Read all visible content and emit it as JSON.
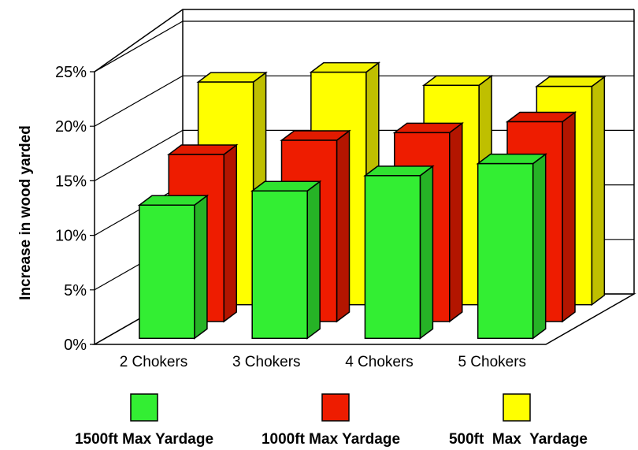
{
  "chart_data": {
    "type": "bar",
    "ylabel": "Increase in wood yarded",
    "y_ticks": [
      "0%",
      "5%",
      "10%",
      "15%",
      "20%",
      "25%"
    ],
    "ylim": [
      0,
      25
    ],
    "categories": [
      "2 Chokers",
      "3 Chokers",
      "4 Chokers",
      "5 Chokers"
    ],
    "series": [
      {
        "name": "1500ft Max Yardage",
        "color": "#33ee33",
        "values": [
          12,
          13.3,
          14.7,
          15.8
        ]
      },
      {
        "name": "1000ft Max Yardage",
        "color": "#ee1c00",
        "values": [
          15.1,
          16.4,
          17.1,
          18.1
        ]
      },
      {
        "name": "500ft  Max  Yardage",
        "color": "#ffff00",
        "values": [
          20.2,
          21.1,
          19.9,
          19.8
        ]
      }
    ],
    "grid": true,
    "legend_position": "bottom",
    "style": "3d-clustered"
  }
}
